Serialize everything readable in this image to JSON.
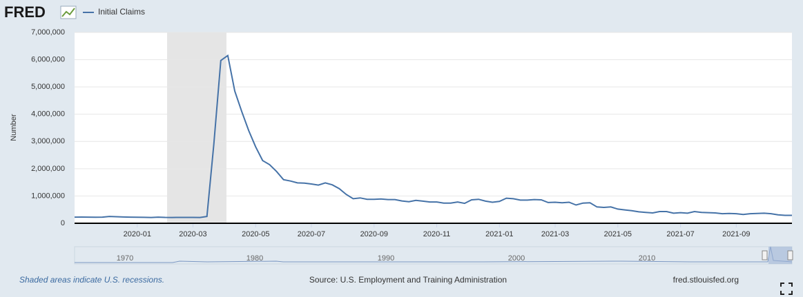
{
  "brand": "FRED",
  "chart_data": {
    "type": "line",
    "series": [
      {
        "name": "Initial Claims",
        "color": "#4572a7",
        "values": [
          225000,
          228000,
          226000,
          222000,
          226000,
          250000,
          240000,
          230000,
          226000,
          222000,
          218000,
          212000,
          225000,
          215000,
          212000,
          215000,
          216000,
          215000,
          212000,
          250000,
          2900000,
          5970000,
          6150000,
          4850000,
          4100000,
          3400000,
          2800000,
          2300000,
          2150000,
          1900000,
          1600000,
          1550000,
          1480000,
          1470000,
          1440000,
          1400000,
          1480000,
          1410000,
          1270000,
          1060000,
          900000,
          930000,
          880000,
          880000,
          890000,
          870000,
          870000,
          820000,
          790000,
          840000,
          810000,
          780000,
          780000,
          740000,
          740000,
          780000,
          730000,
          860000,
          880000,
          810000,
          770000,
          800000,
          920000,
          900000,
          850000,
          850000,
          870000,
          860000,
          760000,
          770000,
          750000,
          770000,
          670000,
          740000,
          750000,
          600000,
          580000,
          600000,
          520000,
          490000,
          460000,
          420000,
          400000,
          380000,
          430000,
          430000,
          370000,
          390000,
          370000,
          430000,
          400000,
          390000,
          380000,
          350000,
          360000,
          350000,
          320000,
          350000,
          360000,
          370000,
          350000,
          310000,
          290000,
          290000
        ]
      }
    ],
    "categories": [
      null,
      null,
      null,
      null,
      null,
      null,
      null,
      null,
      null,
      "2020-01",
      null,
      null,
      null,
      null,
      null,
      null,
      null,
      "2020-03",
      null,
      null,
      null,
      null,
      null,
      null,
      null,
      null,
      "2020-05",
      null,
      null,
      null,
      null,
      null,
      null,
      null,
      "2020-07",
      null,
      null,
      null,
      null,
      null,
      null,
      null,
      null,
      "2020-09",
      null,
      null,
      null,
      null,
      null,
      null,
      null,
      null,
      "2020-11",
      null,
      null,
      null,
      null,
      null,
      null,
      null,
      null,
      "2021-01",
      null,
      null,
      null,
      null,
      null,
      null,
      null,
      "2021-03",
      null,
      null,
      null,
      null,
      null,
      null,
      null,
      null,
      "2021-05",
      null,
      null,
      null,
      null,
      null,
      null,
      null,
      null,
      "2021-07",
      null,
      null,
      null,
      null,
      null,
      null,
      null,
      "2021-09",
      null,
      null,
      null,
      null,
      null,
      null,
      null,
      null
    ],
    "ylabel": "Number",
    "ylim": [
      0,
      7000000
    ],
    "yticks": [
      0,
      {
        "value": 1000000,
        "label": "1,000,000"
      },
      {
        "value": 2000000,
        "label": "2,000,000"
      },
      {
        "value": 3000000,
        "label": "3,000,000"
      },
      {
        "value": 4000000,
        "label": "4,000,000"
      },
      {
        "value": 5000000,
        "label": "5,000,000"
      },
      {
        "value": 6000000,
        "label": "6,000,000"
      },
      {
        "value": 7000000,
        "label": "7,000,000"
      }
    ],
    "grid": true
  },
  "navigator": {
    "labels": [
      "1970",
      "1980",
      "1990",
      "2000",
      "2010"
    ]
  },
  "footer": {
    "note": "Shaded areas indicate U.S. recessions.",
    "source": "Source: U.S. Employment and Training Administration",
    "site": "fred.stlouisfed.org"
  }
}
